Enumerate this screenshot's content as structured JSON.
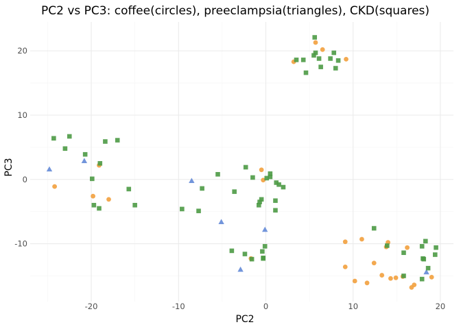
{
  "chart_data": {
    "type": "scatter",
    "title": "PC2 vs PC3: coffee(circles), preeclampsia(triangles), CKD(squares)",
    "xlabel": "PC2",
    "ylabel": "PC3",
    "xlim": [
      -27,
      21.5
    ],
    "ylim": [
      -19,
      24.5
    ],
    "x_ticks": [
      -20,
      -10,
      0,
      10,
      20
    ],
    "y_ticks": [
      -10,
      0,
      10,
      20
    ],
    "x_tick_labels": [
      "-20",
      "-10",
      "0",
      "10",
      "20"
    ],
    "y_tick_labels": [
      "-10",
      "0",
      "10",
      "20"
    ],
    "grid": true,
    "legend": "none",
    "series": [
      {
        "shape": "circle",
        "color": "#f2a03d",
        "points": [
          [
            -24.2,
            -1.1
          ],
          [
            -19.8,
            -2.6
          ],
          [
            -19.1,
            2.2
          ],
          [
            -18.0,
            -3.1
          ],
          [
            -0.5,
            1.5
          ],
          [
            -0.3,
            -0.1
          ],
          [
            -1.7,
            -12.3
          ],
          [
            3.2,
            18.3
          ],
          [
            5.7,
            21.3
          ],
          [
            6.5,
            20.2
          ],
          [
            9.2,
            18.7
          ],
          [
            9.1,
            -9.7
          ],
          [
            9.1,
            -13.6
          ],
          [
            10.2,
            -15.8
          ],
          [
            11.0,
            -9.3
          ],
          [
            11.6,
            -16.1
          ],
          [
            12.4,
            -13.0
          ],
          [
            13.3,
            -14.9
          ],
          [
            13.8,
            -10.5
          ],
          [
            14.0,
            -9.8
          ],
          [
            14.3,
            -15.4
          ],
          [
            14.9,
            -15.3
          ],
          [
            15.7,
            -15.1
          ],
          [
            16.2,
            -10.6
          ],
          [
            16.7,
            -16.8
          ],
          [
            17.0,
            -16.4
          ],
          [
            19.0,
            -15.2
          ]
        ]
      },
      {
        "shape": "triangle",
        "color": "#6a8fd9",
        "points": [
          [
            -24.8,
            1.6
          ],
          [
            -20.8,
            2.9
          ],
          [
            -8.5,
            -0.2
          ],
          [
            -5.1,
            -6.6
          ],
          [
            -0.1,
            -7.8
          ],
          [
            -2.9,
            -14.0
          ],
          [
            18.4,
            -14.4
          ]
        ]
      },
      {
        "shape": "square",
        "color": "#4c9a45",
        "points": [
          [
            -24.3,
            6.4
          ],
          [
            -22.5,
            6.7
          ],
          [
            -23.0,
            4.8
          ],
          [
            -20.7,
            3.9
          ],
          [
            -19.9,
            0.1
          ],
          [
            -19.7,
            -4.0
          ],
          [
            -19.1,
            -4.5
          ],
          [
            -19.0,
            2.5
          ],
          [
            -18.4,
            5.9
          ],
          [
            -17.0,
            6.1
          ],
          [
            -15.7,
            -1.5
          ],
          [
            -15.0,
            -4.0
          ],
          [
            -9.6,
            -4.6
          ],
          [
            -7.7,
            -4.9
          ],
          [
            -7.3,
            -1.4
          ],
          [
            -5.5,
            0.8
          ],
          [
            -3.9,
            -11.1
          ],
          [
            -3.6,
            -1.9
          ],
          [
            -2.4,
            -11.6
          ],
          [
            -2.3,
            1.9
          ],
          [
            -1.6,
            -12.4
          ],
          [
            -1.5,
            0.3
          ],
          [
            -0.8,
            -4.0
          ],
          [
            -0.7,
            -3.5
          ],
          [
            -0.5,
            -3.1
          ],
          [
            -0.4,
            -11.2
          ],
          [
            -0.3,
            -12.2
          ],
          [
            -0.3,
            -12.3
          ],
          [
            -0.1,
            -10.4
          ],
          [
            0.1,
            0.2
          ],
          [
            0.5,
            0.9
          ],
          [
            0.5,
            0.4
          ],
          [
            1.1,
            -3.3
          ],
          [
            1.1,
            -4.8
          ],
          [
            1.2,
            -0.5
          ],
          [
            1.5,
            -0.8
          ],
          [
            2.0,
            -1.2
          ],
          [
            3.5,
            18.6
          ],
          [
            4.3,
            18.6
          ],
          [
            4.6,
            16.6
          ],
          [
            5.5,
            19.3
          ],
          [
            5.6,
            22.1
          ],
          [
            5.7,
            19.7
          ],
          [
            6.1,
            18.8
          ],
          [
            6.3,
            17.5
          ],
          [
            7.4,
            18.8
          ],
          [
            7.8,
            19.7
          ],
          [
            8.0,
            17.3
          ],
          [
            8.3,
            18.5
          ],
          [
            12.4,
            -7.6
          ],
          [
            13.9,
            -10.3
          ],
          [
            15.8,
            -11.4
          ],
          [
            15.8,
            -15.0
          ],
          [
            17.9,
            -15.5
          ],
          [
            17.9,
            -10.4
          ],
          [
            18.0,
            -12.3
          ],
          [
            18.1,
            -12.4
          ],
          [
            18.3,
            -9.6
          ],
          [
            18.6,
            -13.8
          ],
          [
            19.5,
            -10.6
          ],
          [
            19.4,
            -11.7
          ]
        ]
      }
    ]
  }
}
